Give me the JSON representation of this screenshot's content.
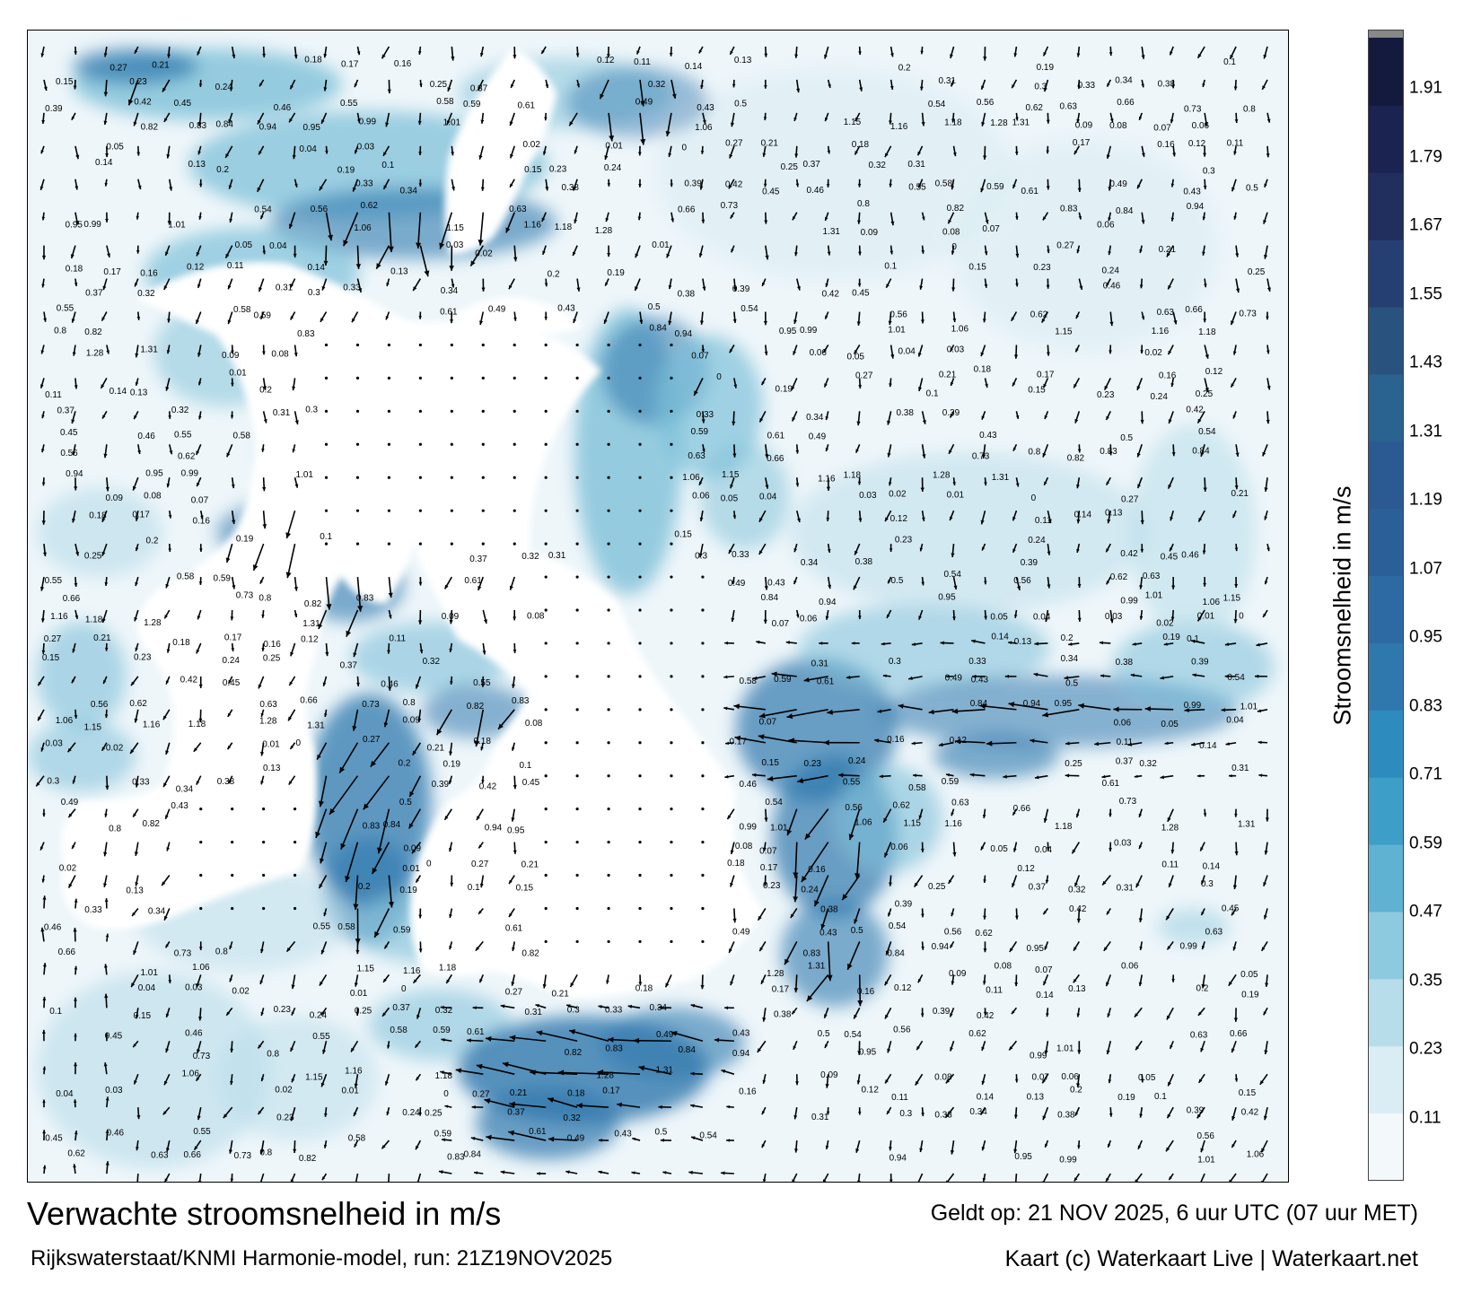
{
  "map": {
    "name": "North Sea current speed forecast",
    "land_color": "#ffffff",
    "water_light": "#e4f1f7",
    "water_mid": "#7ec0d8",
    "water_dark": "#2f78ad",
    "arrow_color": "#000000"
  },
  "labels": {
    "title": "Verwachte stroomsnelheid in m/s",
    "subtitle": "Rijkswaterstaat/KNMI Harmonie-model, run: 21Z19NOV2025",
    "valid_time": "Geldt op: 21 NOV 2025, 6 uur UTC (07 uur MET)",
    "credit": "Kaart (c) Waterkaart Live | Waterkaart.net"
  },
  "colorbar": {
    "title": "Stroomsnelheid in m/s",
    "ticks": [
      "1.91",
      "1.79",
      "1.67",
      "1.55",
      "1.43",
      "1.31",
      "1.19",
      "1.07",
      "0.95",
      "0.83",
      "0.71",
      "0.59",
      "0.47",
      "0.35",
      "0.23",
      "0.11"
    ],
    "tick_values": [
      1.91,
      1.79,
      1.67,
      1.55,
      1.43,
      1.31,
      1.19,
      1.07,
      0.95,
      0.83,
      0.71,
      0.59,
      0.47,
      0.35,
      0.23,
      0.11
    ],
    "min": 0.0,
    "max": 2.0,
    "colors": [
      "#f3f9fb",
      "#dbedf4",
      "#b7dcea",
      "#8ecadf",
      "#5fb2d2",
      "#3d9ec7",
      "#2e8bbd",
      "#2f78ad",
      "#2d6aa3",
      "#2a5f98",
      "#2a5a91",
      "#2a638f",
      "#29527f",
      "#263f72",
      "#212f5f",
      "#1b2350",
      "#141a3d"
    ]
  },
  "sample_values": [
    "0.27",
    "0.21",
    "0.18",
    "0.17",
    "0.16",
    "0.12",
    "0.11",
    "0.14",
    "0.13",
    "0.2",
    "0.19",
    "0.1",
    "0.15",
    "0.23",
    "0.24",
    "0.25",
    "0.37",
    "0.32",
    "0.31",
    "0.3",
    "0.33",
    "0.34",
    "0.38",
    "0.39",
    "0.42",
    "0.45",
    "0.46",
    "0.55",
    "0.58",
    "0.59",
    "0.61",
    "0.49",
    "0.43",
    "0.5",
    "0.54",
    "0.56",
    "0.62",
    "0.63",
    "0.66",
    "0.73",
    "0.8",
    "0.82",
    "0.83",
    "0.84",
    "0.94",
    "0.95",
    "0.99",
    "1.01",
    "1.06",
    "1.15",
    "1.16",
    "1.18",
    "1.28",
    "1.31",
    "0.09",
    "0.08",
    "0.07",
    "0.06",
    "0.05",
    "0.04",
    "0.03",
    "0.02",
    "0.01",
    "0"
  ]
}
